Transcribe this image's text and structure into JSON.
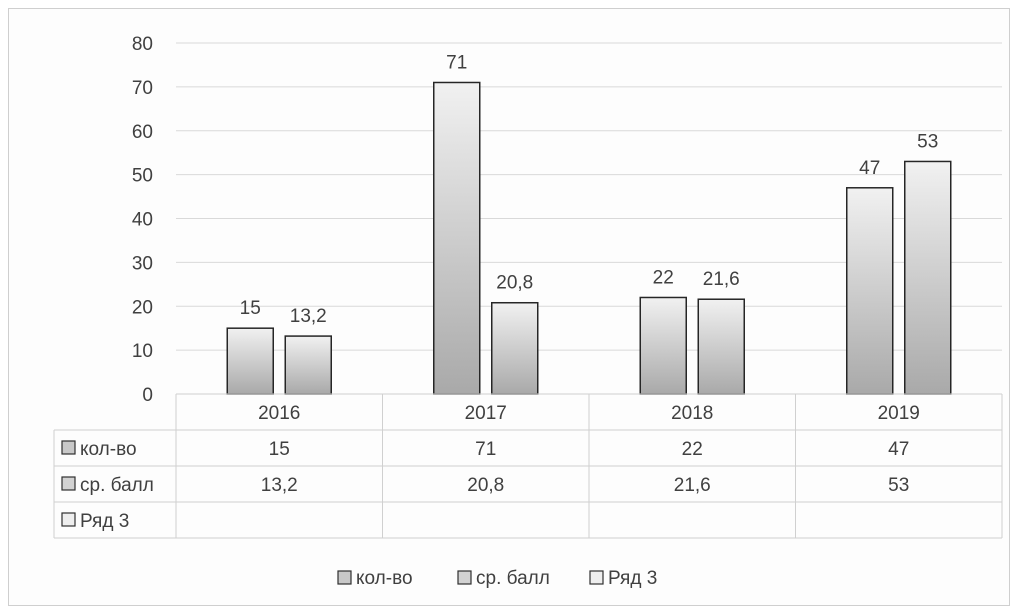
{
  "chart_data": {
    "type": "bar",
    "categories": [
      "2016",
      "2017",
      "2018",
      "2019"
    ],
    "series": [
      {
        "name": "кол-во",
        "values": [
          15,
          71,
          22,
          47
        ],
        "labels": [
          "15",
          "71",
          "22",
          "47"
        ],
        "color": "#c8c8c8"
      },
      {
        "name": "ср. балл",
        "values": [
          13.2,
          20.8,
          21.6,
          53
        ],
        "labels": [
          "13,2",
          "20,8",
          "21,6",
          "53"
        ],
        "color": "#d2d2d2"
      },
      {
        "name": "Ряд 3",
        "values": [
          null,
          null,
          null,
          null
        ],
        "labels": [
          "",
          "",
          "",
          ""
        ],
        "color": "#eeeeee"
      }
    ],
    "ylim": [
      0,
      80
    ],
    "yticks": [
      0,
      10,
      20,
      30,
      40,
      50,
      60,
      70,
      80
    ],
    "grid": true,
    "data_table": true,
    "legend_position": "bottom"
  }
}
